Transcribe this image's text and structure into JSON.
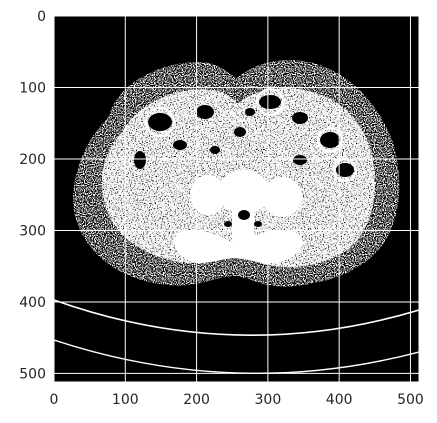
{
  "image": {
    "subject": "axial-abdominal-ct-slice",
    "palette": {
      "background": "#000000",
      "tissue": "#ffffff",
      "grid": "#ffffff",
      "text": "#262626"
    }
  },
  "axes": {
    "x_range": [
      0,
      512
    ],
    "y_range": [
      0,
      512
    ],
    "y_inverted": true,
    "grid": true,
    "x_ticks": [
      {
        "value": 0,
        "label": "0"
      },
      {
        "value": 100,
        "label": "100"
      },
      {
        "value": 200,
        "label": "200"
      },
      {
        "value": 300,
        "label": "300"
      },
      {
        "value": 400,
        "label": "400"
      },
      {
        "value": 500,
        "label": "500"
      }
    ],
    "y_ticks": [
      {
        "value": 0,
        "label": "0"
      },
      {
        "value": 100,
        "label": "100"
      },
      {
        "value": 200,
        "label": "200"
      },
      {
        "value": 300,
        "label": "300"
      },
      {
        "value": 400,
        "label": "400"
      },
      {
        "value": 500,
        "label": "500"
      }
    ]
  }
}
